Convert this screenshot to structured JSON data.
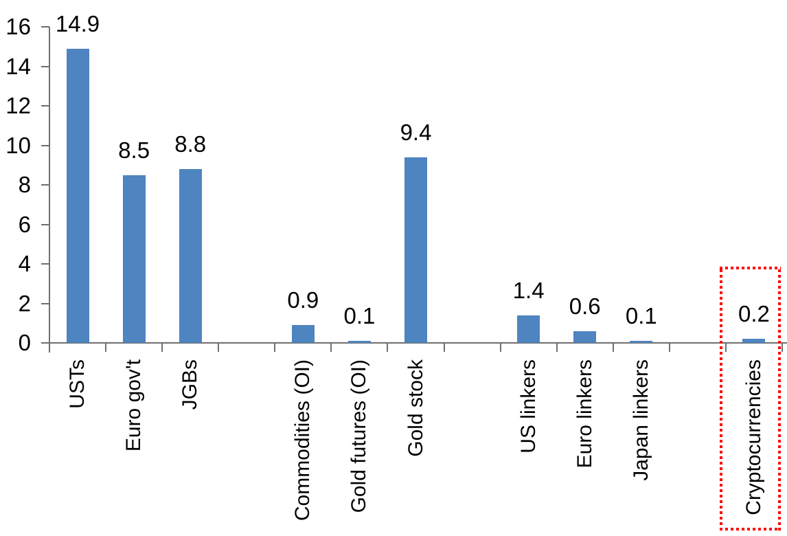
{
  "chart_data": {
    "type": "bar",
    "title": "",
    "categories": [
      "USTs",
      "Euro gov't",
      "JGBs",
      "Commodities (OI)",
      "Gold futures (OI)",
      "Gold stock",
      "US linkers",
      "Euro linkers",
      "Japan linkers",
      "Cryptocurrencies"
    ],
    "values": [
      14.9,
      8.5,
      8.8,
      0.9,
      0.1,
      9.4,
      1.4,
      0.6,
      0.1,
      0.2
    ],
    "value_labels": [
      "14.9",
      "8.5",
      "8.8",
      "0.9",
      "0.1",
      "9.4",
      "1.4",
      "0.6",
      "0.1",
      "0.2"
    ],
    "slot_index": [
      0,
      1,
      2,
      4,
      5,
      6,
      8,
      9,
      10,
      12
    ],
    "num_slots": 13,
    "y_ticks": [
      0,
      2,
      4,
      6,
      8,
      10,
      12,
      14,
      16
    ],
    "y_tick_labels": [
      "0",
      "2",
      "4",
      "6",
      "8",
      "10",
      "12",
      "14",
      "16"
    ],
    "ylim": [
      0,
      16
    ],
    "grid": "off",
    "legend": "none",
    "bar_color": "#4e84bf",
    "axis_color": "#6f6f6f",
    "text_color": "#000000",
    "highlight": {
      "category": "Cryptocurrencies",
      "box_color": "#ff0000",
      "box_style": "square-dotted"
    }
  }
}
